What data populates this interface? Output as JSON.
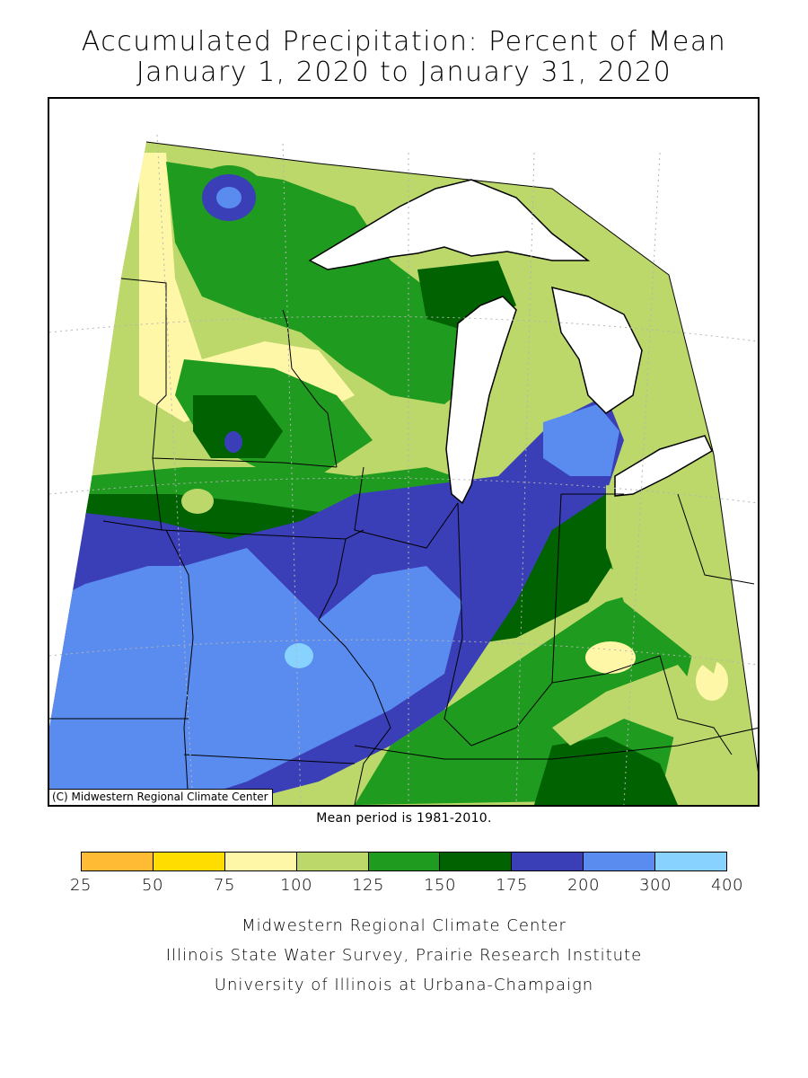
{
  "title": {
    "line1": "Accumulated Precipitation: Percent of Mean",
    "line2": "January 1, 2020 to January 31, 2020"
  },
  "map": {
    "copyright": "(C) Midwestern Regional Climate Center",
    "region": "Midwest United States",
    "colors": {
      "lake": "#ffffff",
      "border": "#000000",
      "grid": "#b4b4b4"
    }
  },
  "mean_period": "Mean period is 1981-2010.",
  "legend": {
    "ticks": [
      "25",
      "50",
      "75",
      "100",
      "125",
      "150",
      "175",
      "200",
      "300",
      "400"
    ],
    "colors": [
      "#ffbb33",
      "#ffdd00",
      "#fff7a8",
      "#bcd86a",
      "#1f9b1f",
      "#006200",
      "#3a3fb8",
      "#5a8cf0",
      "#88d2ff"
    ]
  },
  "credits": [
    "Midwestern Regional Climate Center",
    "Illinois State Water Survey, Prairie Research Institute",
    "University of Illinois at Urbana-Champaign"
  ]
}
